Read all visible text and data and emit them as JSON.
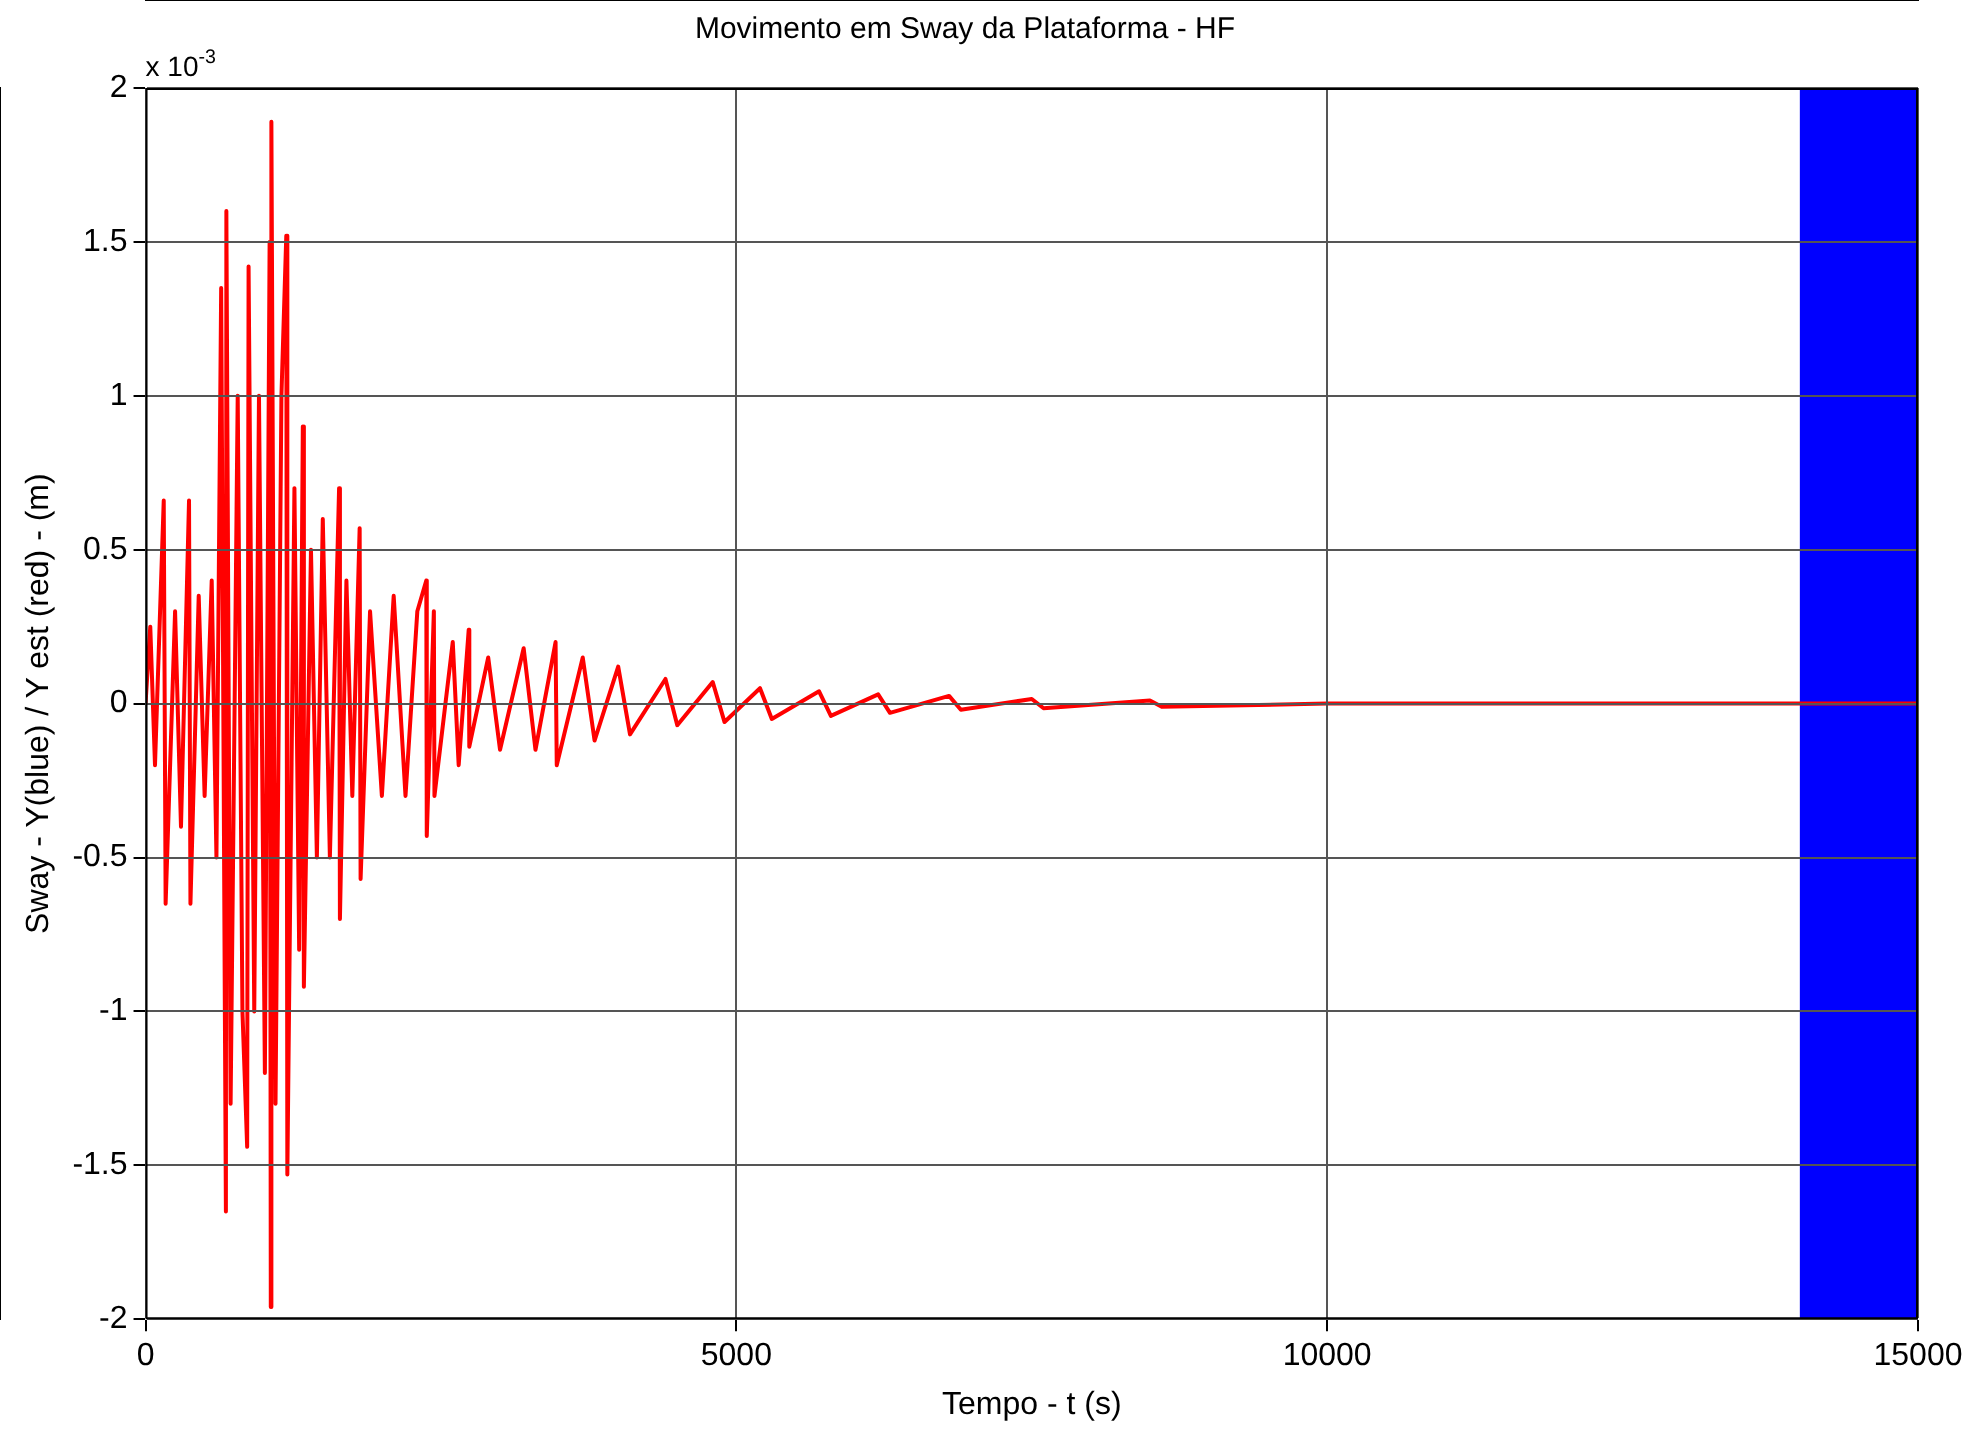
{
  "chart_data": {
    "type": "line",
    "title": "Movimento em Sway da Plataforma - HF",
    "xlabel": "Tempo - t (s)",
    "ylabel": "Sway - Y(blue) / Y est (red) - (m)",
    "annotations": [
      "x 10$^{-3}$"
    ],
    "xlim": [
      0,
      15000
    ],
    "xticks": [
      0,
      5000,
      10000,
      15000
    ],
    "ylim": [
      -2,
      2
    ],
    "yticks": [
      -2,
      -1.5,
      -1,
      -0.5,
      0,
      0.5,
      1,
      1.5,
      2
    ],
    "grid": true,
    "legend": false,
    "marker": "none",
    "line_style": "solid",
    "bands": [
      {
        "axis": "x",
        "from": 14000,
        "to": 15000,
        "color": "#0000ff"
      }
    ],
    "series": [
      {
        "color": "#ff0000",
        "x": [
          0,
          40,
          80,
          154,
          170,
          250,
          300,
          368,
          380,
          450,
          500,
          560,
          600,
          640,
          680,
          684,
          720,
          780,
          820,
          860,
          872,
          920,
          960,
          1010,
          1050,
          1060,
          1065,
          1100,
          1150,
          1191,
          1200,
          1260,
          1300,
          1331,
          1340,
          1400,
          1450,
          1500,
          1560,
          1638,
          1645,
          1700,
          1750,
          1812,
          1820,
          1900,
          2000,
          2100,
          2200,
          2300,
          2376,
          2380,
          2440,
          2445,
          2600,
          2650,
          2735,
          2740,
          2900,
          3000,
          3200,
          3300,
          3470,
          3480,
          3700,
          3800,
          4000,
          4100,
          4400,
          4500,
          4800,
          4900,
          5200,
          5300,
          5700,
          5800,
          6200,
          6300,
          6800,
          6900,
          7500,
          7600,
          8500,
          8600,
          10000,
          15000
        ],
        "values": [
          0,
          0.25,
          -0.2,
          0.66,
          -0.65,
          0.3,
          -0.4,
          0.66,
          -0.65,
          0.35,
          -0.3,
          0.4,
          -0.5,
          1.35,
          -1.65,
          1.6,
          -1.3,
          1.0,
          -1.0,
          -1.44,
          1.42,
          -1.0,
          1.0,
          -1.2,
          1.5,
          -1.96,
          1.89,
          -1.3,
          1.0,
          1.52,
          -1.53,
          0.7,
          -0.8,
          0.9,
          -0.92,
          0.5,
          -0.5,
          0.6,
          -0.5,
          0.7,
          -0.7,
          0.4,
          -0.3,
          0.57,
          -0.57,
          0.3,
          -0.3,
          0.35,
          -0.3,
          0.3,
          0.4,
          -0.43,
          0.3,
          -0.3,
          0.2,
          -0.2,
          0.24,
          -0.14,
          0.15,
          -0.15,
          0.18,
          -0.15,
          0.2,
          -0.2,
          0.15,
          -0.12,
          0.12,
          -0.1,
          0.08,
          -0.07,
          0.07,
          -0.06,
          0.05,
          -0.05,
          0.04,
          -0.04,
          0.03,
          -0.03,
          0.025,
          -0.02,
          0.015,
          -0.015,
          0.01,
          -0.01,
          0,
          0
        ]
      }
    ]
  }
}
